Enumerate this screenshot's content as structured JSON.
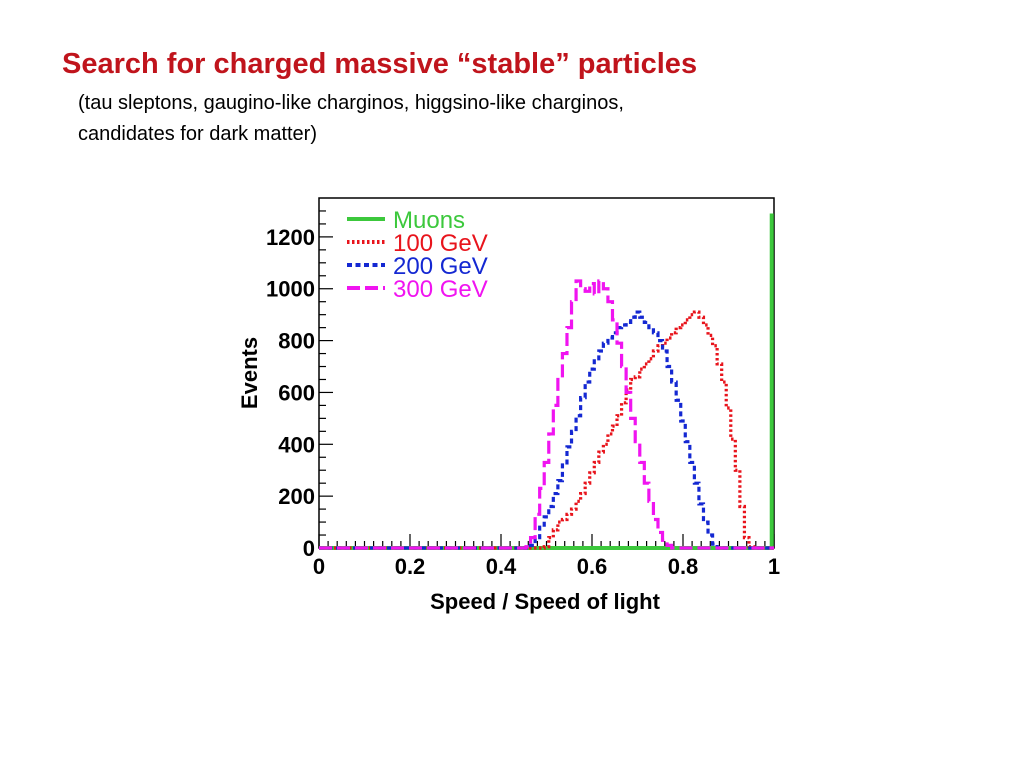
{
  "slide": {
    "title": "Search for charged massive “stable” particles",
    "subtitle_lines": [
      "(tau sleptons, gaugino-like charginos, higgsino-like charginos,",
      "candidates for dark matter)"
    ]
  },
  "chart_data": {
    "type": "line",
    "title": "",
    "xlabel": "Speed / Speed of light",
    "ylabel": "Events",
    "xlim": [
      0,
      1
    ],
    "ylim": [
      0,
      1350
    ],
    "x_ticks": [
      "0",
      "0.2",
      "0.4",
      "0.6",
      "0.8",
      "1"
    ],
    "y_ticks": [
      "0",
      "200",
      "400",
      "600",
      "800",
      "1000",
      "1200"
    ],
    "grid": false,
    "legend_position": "top-left",
    "x": [
      0.45,
      0.46,
      0.47,
      0.48,
      0.49,
      0.5,
      0.51,
      0.52,
      0.53,
      0.54,
      0.55,
      0.56,
      0.57,
      0.58,
      0.59,
      0.6,
      0.61,
      0.62,
      0.63,
      0.64,
      0.65,
      0.66,
      0.67,
      0.68,
      0.69,
      0.7,
      0.71,
      0.72,
      0.73,
      0.74,
      0.75,
      0.76,
      0.77,
      0.78,
      0.79,
      0.8,
      0.81,
      0.82,
      0.83,
      0.84,
      0.85,
      0.86,
      0.87,
      0.88,
      0.89,
      0.9,
      0.91,
      0.92,
      0.93,
      0.94,
      0.95,
      0.96,
      0.97,
      0.98,
      0.99
    ],
    "series": [
      {
        "name": "Muons",
        "color": "#3cc83c",
        "style": "solid",
        "spike_x": 0.995,
        "spike_value": 1290
      },
      {
        "name": "100 GeV",
        "color": "#e8141c",
        "style": "dotted",
        "values": [
          0,
          0,
          0,
          0,
          0,
          5,
          40,
          70,
          100,
          110,
          130,
          150,
          180,
          210,
          250,
          290,
          330,
          370,
          400,
          440,
          470,
          510,
          560,
          610,
          650,
          660,
          690,
          710,
          730,
          760,
          780,
          790,
          810,
          830,
          850,
          860,
          880,
          900,
          910,
          890,
          860,
          820,
          780,
          710,
          640,
          540,
          420,
          300,
          160,
          40,
          5,
          0,
          0,
          0,
          0
        ]
      },
      {
        "name": "200 GeV",
        "color": "#1428d2",
        "style": "dashed",
        "values": [
          0,
          0,
          10,
          40,
          80,
          120,
          160,
          210,
          260,
          320,
          390,
          450,
          510,
          580,
          640,
          690,
          730,
          760,
          790,
          810,
          830,
          850,
          860,
          870,
          890,
          910,
          890,
          870,
          850,
          830,
          800,
          760,
          700,
          640,
          570,
          490,
          410,
          330,
          250,
          170,
          100,
          50,
          15,
          0,
          0,
          0,
          0,
          0,
          0,
          0,
          0,
          0,
          0,
          0,
          0
        ]
      },
      {
        "name": "300 GeV",
        "color": "#f014f0",
        "style": "longdash",
        "values": [
          0,
          5,
          40,
          130,
          230,
          330,
          440,
          550,
          650,
          750,
          850,
          950,
          1030,
          1000,
          990,
          1020,
          980,
          1030,
          1000,
          950,
          880,
          790,
          700,
          600,
          500,
          410,
          330,
          250,
          180,
          110,
          60,
          30,
          10,
          0,
          0,
          0,
          0,
          0,
          0,
          0,
          0,
          0,
          0,
          0,
          0,
          0,
          0,
          0,
          0,
          0,
          0,
          0,
          0,
          0,
          0
        ]
      }
    ]
  }
}
